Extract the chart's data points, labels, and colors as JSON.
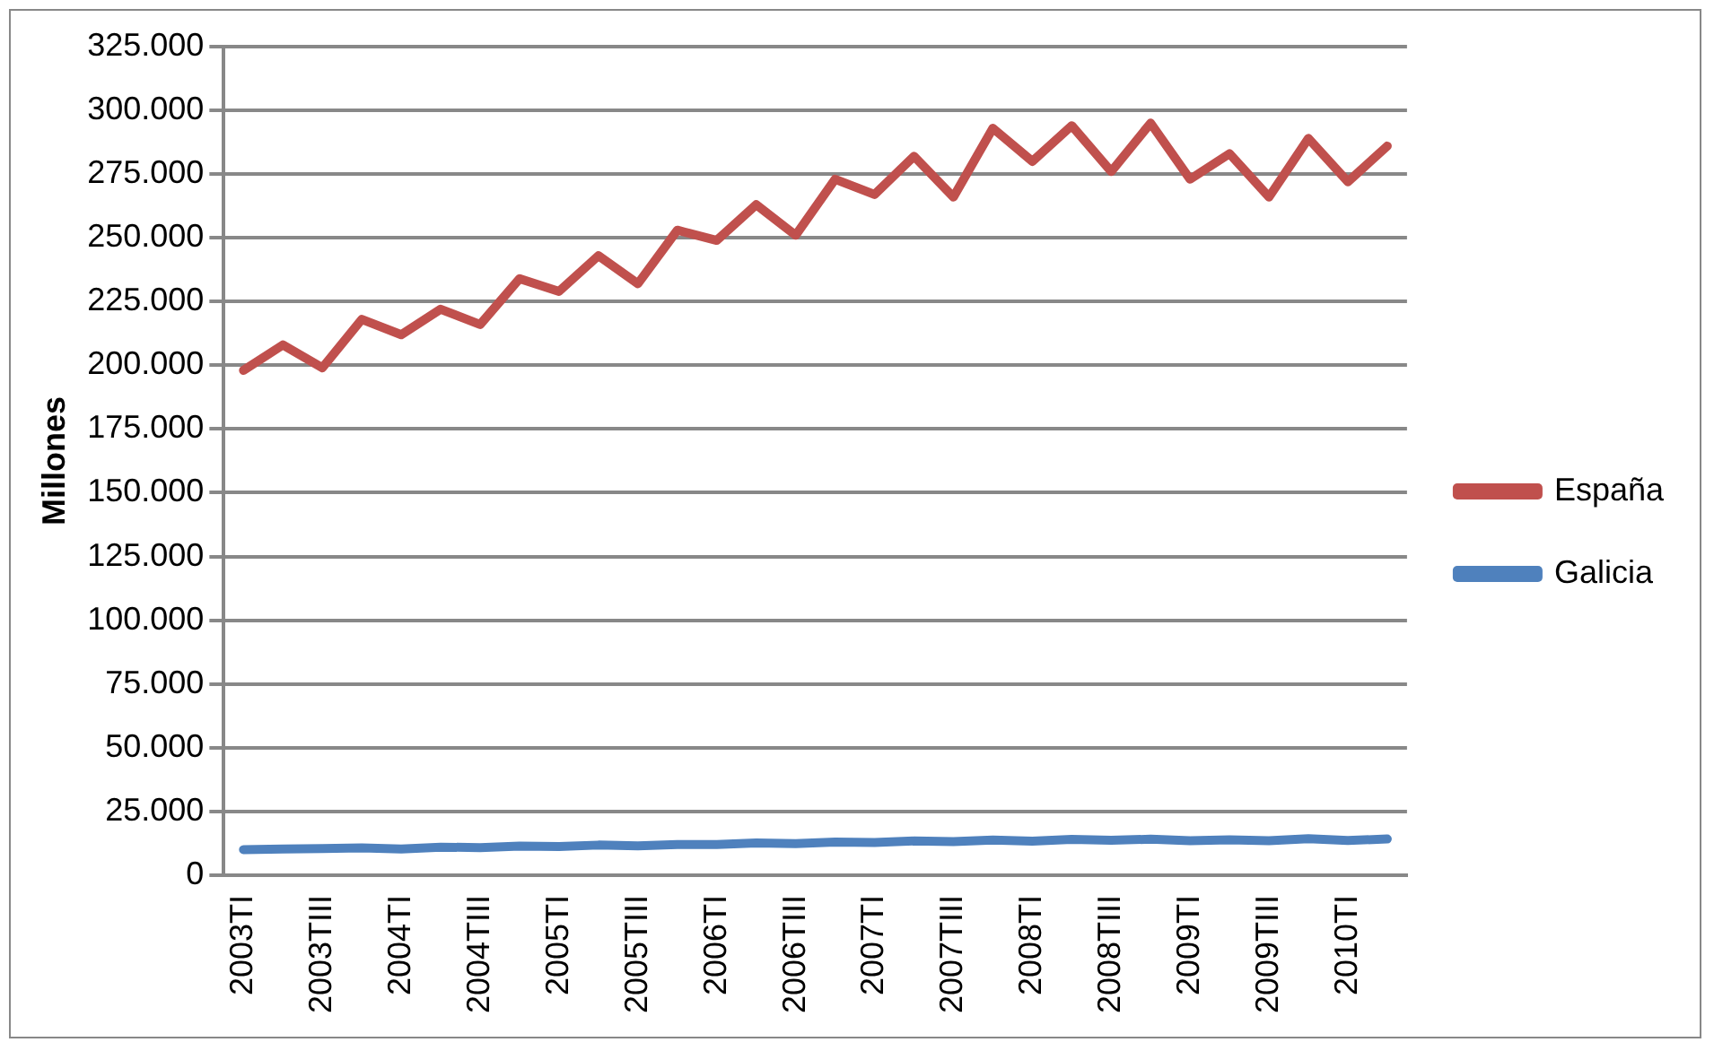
{
  "chart_data": {
    "type": "line",
    "ylabel": "Millones",
    "categories": [
      "2003TI",
      null,
      "2003TIII",
      null,
      "2004TI",
      null,
      "2004TIII",
      null,
      "2005TI",
      null,
      "2005TIII",
      null,
      "2006TI",
      null,
      "2006TIII",
      null,
      "2007TI",
      null,
      "2007TIII",
      null,
      "2008TI",
      null,
      "2008TIII",
      null,
      "2009TI",
      null,
      "2009TIII",
      null,
      "2010TI",
      null
    ],
    "series": [
      {
        "name": "España",
        "color": "#c0504d",
        "values": [
          198000,
          208000,
          199000,
          218000,
          212000,
          222000,
          216000,
          234000,
          229000,
          243000,
          232000,
          253000,
          249000,
          263000,
          251000,
          273000,
          267000,
          282000,
          266000,
          293000,
          280000,
          294000,
          276000,
          295000,
          273000,
          283000,
          266000,
          289000,
          272000,
          286000
        ]
      },
      {
        "name": "Galicia",
        "color": "#4f81bd",
        "values": [
          10000,
          10300,
          10400,
          10700,
          10300,
          11000,
          10800,
          11400,
          11200,
          11800,
          11500,
          12000,
          12000,
          12600,
          12400,
          13000,
          12800,
          13400,
          13200,
          13800,
          13300,
          14000,
          13700,
          14100,
          13500,
          13900,
          13500,
          14300,
          13600,
          14200
        ]
      }
    ],
    "ylim": [
      0,
      325000
    ],
    "yticks": [
      {
        "value": 0,
        "label": "0"
      },
      {
        "value": 25000,
        "label": "25.000"
      },
      {
        "value": 50000,
        "label": "50.000"
      },
      {
        "value": 75000,
        "label": "75.000"
      },
      {
        "value": 100000,
        "label": "100.000"
      },
      {
        "value": 125000,
        "label": "125.000"
      },
      {
        "value": 150000,
        "label": "150.000"
      },
      {
        "value": 175000,
        "label": "175.000"
      },
      {
        "value": 200000,
        "label": "200.000"
      },
      {
        "value": 225000,
        "label": "225.000"
      },
      {
        "value": 250000,
        "label": "250.000"
      },
      {
        "value": 275000,
        "label": "275.000"
      },
      {
        "value": 300000,
        "label": "300.000"
      },
      {
        "value": 325000,
        "label": "325.000"
      }
    ],
    "grid": "y",
    "legend": "right",
    "marker": "none",
    "line_style": "solid"
  }
}
